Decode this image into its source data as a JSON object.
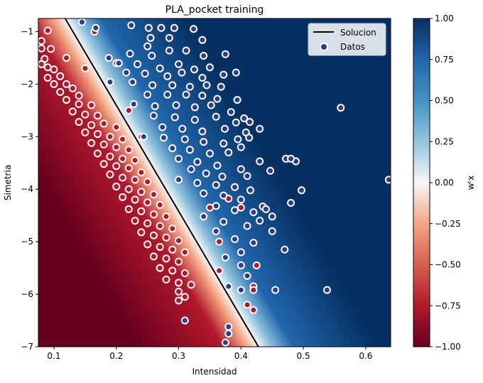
{
  "chart_data": {
    "type": "scatter",
    "title": "PLA_pocket training",
    "xlabel": "Intensidad",
    "ylabel": "Simetria",
    "xlim": [
      0.075,
      0.64
    ],
    "ylim": [
      -7.0,
      -0.75
    ],
    "xticks": [
      "0.1",
      "0.2",
      "0.3",
      "0.4",
      "0.5",
      "0.6"
    ],
    "yticks": [
      "−1",
      "−2",
      "−3",
      "−4",
      "−5",
      "−6",
      "−7"
    ],
    "xtick_values": [
      0.1,
      0.2,
      0.3,
      0.4,
      0.5,
      0.6
    ],
    "ytick_values": [
      -1,
      -2,
      -3,
      -4,
      -5,
      -6,
      -7
    ],
    "grid": false,
    "legend": {
      "position": "top-right",
      "entries": [
        "Solucion",
        "Datos"
      ]
    },
    "solution_line": {
      "name": "Solucion",
      "points": [
        [
          0.118,
          -0.75
        ],
        [
          0.428,
          -7.0
        ]
      ],
      "color": "#000000"
    },
    "background_field": {
      "description_label": "w^t x",
      "boundary_points": [
        [
          0.118,
          -0.75
        ],
        [
          0.428,
          -7.0
        ]
      ],
      "transition_width": 0.055
    },
    "colorbar": {
      "label": "wᵗx",
      "range": [
        -1.0,
        1.0
      ],
      "ticks": [
        "1.00",
        "0.75",
        "0.50",
        "0.25",
        "0.00",
        "−0.25",
        "−0.50",
        "−0.75",
        "−1.00"
      ],
      "tick_values": [
        1.0,
        0.75,
        0.5,
        0.25,
        0.0,
        -0.25,
        -0.5,
        -0.75,
        -1.0
      ]
    },
    "colors": {
      "positive": "#053061",
      "negative": "#67001f",
      "point_positive": "#2d3d8c",
      "point_negative": "#b2182b",
      "point_edge": "#ffffff"
    },
    "series": [
      {
        "name": "Datos",
        "class_positive_sample": [
          [
            0.145,
            -0.82
          ],
          [
            0.167,
            -0.93
          ],
          [
            0.224,
            -0.88
          ],
          [
            0.252,
            -0.93
          ],
          [
            0.272,
            -0.93
          ],
          [
            0.293,
            -0.93
          ],
          [
            0.324,
            -0.95
          ],
          [
            0.255,
            -1.12
          ],
          [
            0.285,
            -1.12
          ],
          [
            0.338,
            -1.16
          ],
          [
            0.25,
            -1.28
          ],
          [
            0.188,
            -1.5
          ],
          [
            0.222,
            -1.42
          ],
          [
            0.257,
            -1.46
          ],
          [
            0.285,
            -1.36
          ],
          [
            0.312,
            -1.36
          ],
          [
            0.34,
            -1.46
          ],
          [
            0.375,
            -1.43
          ],
          [
            0.204,
            -1.6
          ],
          [
            0.234,
            -1.62
          ],
          [
            0.27,
            -1.7
          ],
          [
            0.3,
            -1.62
          ],
          [
            0.325,
            -1.72
          ],
          [
            0.35,
            -1.68
          ],
          [
            0.216,
            -1.78
          ],
          [
            0.246,
            -1.8
          ],
          [
            0.282,
            -1.85
          ],
          [
            0.305,
            -1.78
          ],
          [
            0.338,
            -1.88
          ],
          [
            0.372,
            -1.82
          ],
          [
            0.392,
            -1.78
          ],
          [
            0.19,
            -1.96
          ],
          [
            0.226,
            -1.96
          ],
          [
            0.258,
            -2.02
          ],
          [
            0.29,
            -2.02
          ],
          [
            0.318,
            -2.05
          ],
          [
            0.345,
            -2.02
          ],
          [
            0.368,
            -2.05
          ],
          [
            0.25,
            -2.2
          ],
          [
            0.282,
            -2.2
          ],
          [
            0.312,
            -2.2
          ],
          [
            0.338,
            -2.22
          ],
          [
            0.362,
            -2.28
          ],
          [
            0.394,
            -2.3
          ],
          [
            0.228,
            -2.38
          ],
          [
            0.262,
            -2.42
          ],
          [
            0.296,
            -2.4
          ],
          [
            0.326,
            -2.44
          ],
          [
            0.352,
            -2.4
          ],
          [
            0.384,
            -2.53
          ],
          [
            0.405,
            -2.65
          ],
          [
            0.43,
            -2.85
          ],
          [
            0.56,
            -2.45
          ],
          [
            0.26,
            -2.6
          ],
          [
            0.294,
            -2.63
          ],
          [
            0.326,
            -2.68
          ],
          [
            0.36,
            -2.62
          ],
          [
            0.392,
            -2.73
          ],
          [
            0.414,
            -2.72
          ],
          [
            0.274,
            -2.82
          ],
          [
            0.306,
            -2.85
          ],
          [
            0.338,
            -2.9
          ],
          [
            0.374,
            -2.85
          ],
          [
            0.408,
            -2.92
          ],
          [
            0.244,
            -3.0
          ],
          [
            0.276,
            -3.02
          ],
          [
            0.31,
            -3.05
          ],
          [
            0.34,
            -3.1
          ],
          [
            0.372,
            -3.13
          ],
          [
            0.4,
            -3.2
          ],
          [
            0.413,
            -3.02
          ],
          [
            0.395,
            -3.05
          ],
          [
            0.29,
            -3.22
          ],
          [
            0.318,
            -3.25
          ],
          [
            0.35,
            -3.32
          ],
          [
            0.38,
            -3.3
          ],
          [
            0.43,
            -3.47
          ],
          [
            0.447,
            -3.65
          ],
          [
            0.472,
            -3.42
          ],
          [
            0.488,
            -3.47
          ],
          [
            0.48,
            -3.42
          ],
          [
            0.3,
            -3.42
          ],
          [
            0.33,
            -3.48
          ],
          [
            0.362,
            -3.55
          ],
          [
            0.4,
            -3.62
          ],
          [
            0.32,
            -3.62
          ],
          [
            0.344,
            -3.7
          ],
          [
            0.37,
            -3.76
          ],
          [
            0.41,
            -3.75
          ],
          [
            0.3,
            -3.82
          ],
          [
            0.33,
            -3.88
          ],
          [
            0.36,
            -3.92
          ],
          [
            0.39,
            -3.96
          ],
          [
            0.415,
            -4.02
          ],
          [
            0.497,
            -4.02
          ],
          [
            0.637,
            -3.82
          ],
          [
            0.34,
            -4.08
          ],
          [
            0.372,
            -4.12
          ],
          [
            0.4,
            -4.2
          ],
          [
            0.435,
            -4.33
          ],
          [
            0.48,
            -4.26
          ],
          [
            0.44,
            -4.38
          ],
          [
            0.36,
            -4.32
          ],
          [
            0.39,
            -4.4
          ],
          [
            0.42,
            -4.44
          ],
          [
            0.45,
            -4.52
          ],
          [
            0.43,
            -4.6
          ],
          [
            0.34,
            -4.52
          ],
          [
            0.372,
            -4.62
          ],
          [
            0.41,
            -4.7
          ],
          [
            0.45,
            -4.8
          ],
          [
            0.47,
            -5.15
          ],
          [
            0.36,
            -4.8
          ],
          [
            0.39,
            -4.95
          ],
          [
            0.42,
            -5.02
          ],
          [
            0.4,
            -5.2
          ],
          [
            0.375,
            -5.3
          ],
          [
            0.4,
            -5.45
          ],
          [
            0.41,
            -5.65
          ],
          [
            0.38,
            -5.85
          ],
          [
            0.4,
            -5.92
          ],
          [
            0.455,
            -5.92
          ],
          [
            0.538,
            -5.92
          ],
          [
            0.38,
            -6.62
          ],
          [
            0.38,
            -6.75
          ],
          [
            0.375,
            -6.92
          ],
          [
            0.31,
            -6.5
          ]
        ],
        "class_negative_sample": [
          [
            0.09,
            -0.98
          ],
          [
            0.08,
            -1.18
          ],
          [
            0.08,
            -1.32
          ],
          [
            0.095,
            -1.33
          ],
          [
            0.085,
            -1.52
          ],
          [
            0.08,
            -1.62
          ],
          [
            0.09,
            -1.68
          ],
          [
            0.1,
            -1.72
          ],
          [
            0.11,
            -1.85
          ],
          [
            0.09,
            -1.88
          ],
          [
            0.1,
            -2.0
          ],
          [
            0.12,
            -2.0
          ],
          [
            0.11,
            -2.15
          ],
          [
            0.13,
            -2.08
          ],
          [
            0.14,
            -2.22
          ],
          [
            0.12,
            -2.3
          ],
          [
            0.14,
            -2.38
          ],
          [
            0.16,
            -2.4
          ],
          [
            0.13,
            -2.52
          ],
          [
            0.15,
            -2.58
          ],
          [
            0.17,
            -2.6
          ],
          [
            0.14,
            -2.72
          ],
          [
            0.16,
            -2.78
          ],
          [
            0.18,
            -2.75
          ],
          [
            0.2,
            -2.82
          ],
          [
            0.15,
            -2.92
          ],
          [
            0.17,
            -2.95
          ],
          [
            0.19,
            -3.0
          ],
          [
            0.21,
            -3.05
          ],
          [
            0.16,
            -3.12
          ],
          [
            0.18,
            -3.15
          ],
          [
            0.2,
            -3.2
          ],
          [
            0.22,
            -3.25
          ],
          [
            0.17,
            -3.32
          ],
          [
            0.19,
            -3.38
          ],
          [
            0.21,
            -3.42
          ],
          [
            0.23,
            -3.45
          ],
          [
            0.18,
            -3.52
          ],
          [
            0.2,
            -3.56
          ],
          [
            0.22,
            -3.6
          ],
          [
            0.24,
            -3.68
          ],
          [
            0.19,
            -3.72
          ],
          [
            0.21,
            -3.78
          ],
          [
            0.23,
            -3.82
          ],
          [
            0.25,
            -3.86
          ],
          [
            0.2,
            -3.95
          ],
          [
            0.22,
            -4.0
          ],
          [
            0.24,
            -4.05
          ],
          [
            0.26,
            -4.1
          ],
          [
            0.21,
            -4.15
          ],
          [
            0.23,
            -4.2
          ],
          [
            0.25,
            -4.25
          ],
          [
            0.27,
            -4.3
          ],
          [
            0.22,
            -4.38
          ],
          [
            0.24,
            -4.42
          ],
          [
            0.26,
            -4.48
          ],
          [
            0.28,
            -4.52
          ],
          [
            0.23,
            -4.6
          ],
          [
            0.25,
            -4.65
          ],
          [
            0.27,
            -4.7
          ],
          [
            0.29,
            -4.75
          ],
          [
            0.24,
            -4.82
          ],
          [
            0.26,
            -4.88
          ],
          [
            0.28,
            -4.92
          ],
          [
            0.3,
            -4.98
          ],
          [
            0.25,
            -5.05
          ],
          [
            0.27,
            -5.1
          ],
          [
            0.29,
            -5.15
          ],
          [
            0.31,
            -5.2
          ],
          [
            0.26,
            -5.28
          ],
          [
            0.28,
            -5.32
          ],
          [
            0.3,
            -5.38
          ],
          [
            0.27,
            -5.5
          ],
          [
            0.29,
            -5.55
          ],
          [
            0.31,
            -5.6
          ],
          [
            0.28,
            -5.72
          ],
          [
            0.3,
            -5.78
          ],
          [
            0.32,
            -5.82
          ],
          [
            0.3,
            -5.95
          ],
          [
            0.31,
            -6.05
          ],
          [
            0.3,
            -6.12
          ],
          [
            0.35,
            -4.35
          ],
          [
            0.4,
            -4.35
          ],
          [
            0.38,
            -4.18
          ],
          [
            0.41,
            -6.2
          ],
          [
            0.42,
            -5.85
          ],
          [
            0.42,
            -5.92
          ],
          [
            0.42,
            -6.3
          ],
          [
            0.425,
            -5.45
          ],
          [
            0.365,
            -5.0
          ],
          [
            0.365,
            -5.55
          ],
          [
            0.165,
            -1.0
          ],
          [
            0.2,
            -1.6
          ],
          [
            0.15,
            -1.7
          ],
          [
            0.12,
            -1.5
          ],
          [
            0.22,
            -2.5
          ],
          [
            0.24,
            -3.0
          ]
        ]
      }
    ]
  }
}
